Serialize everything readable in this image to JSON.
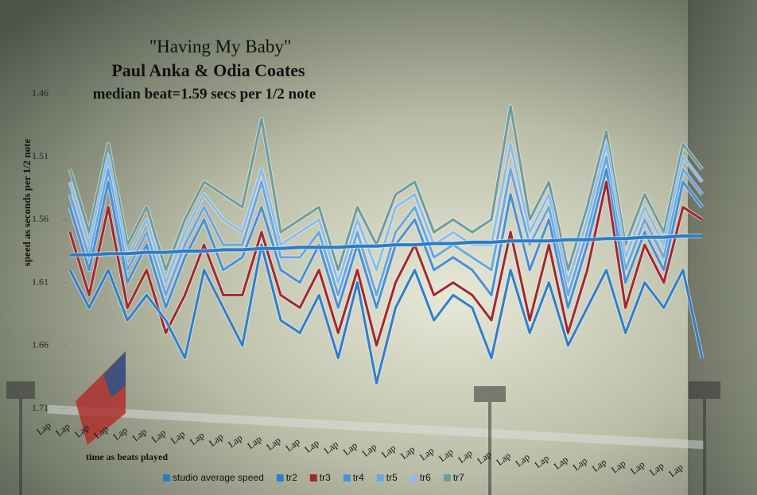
{
  "chart_data": {
    "type": "line",
    "title": "\"Having My Baby\"",
    "subtitle": "Paul Anka & Odia Coates",
    "annotation": "median beat=1.59 secs per 1/2 note",
    "y_label": "speed as seconds per 1/2 note",
    "x_label": "time as beats played",
    "ylim": [
      1.46,
      1.71
    ],
    "y_reversed": true,
    "yticks": [
      1.46,
      1.51,
      1.56,
      1.61,
      1.66,
      1.71
    ],
    "legend": "bottom",
    "categories": [
      "Lap",
      "Lap",
      "Lap",
      "Lap",
      "Lap",
      "Lap",
      "Lap",
      "Lap",
      "Lap",
      "Lap",
      "Lap",
      "Lap",
      "Lap",
      "Lap",
      "Lap",
      "Lap",
      "Lap",
      "Lap",
      "Lap",
      "Lap",
      "Lap",
      "Lap",
      "Lap",
      "Lap",
      "Lap",
      "Lap",
      "Lap",
      "Lap",
      "Lap",
      "Lap",
      "Lap",
      "Lap",
      "Lap",
      "Lap"
    ],
    "series": [
      {
        "name": "studio average speed",
        "color": "#2b7cc6",
        "values": [
          1.588,
          1.588,
          1.587,
          1.587,
          1.586,
          1.586,
          1.585,
          1.585,
          1.584,
          1.584,
          1.583,
          1.583,
          1.582,
          1.582,
          1.582,
          1.581,
          1.581,
          1.58,
          1.58,
          1.579,
          1.579,
          1.578,
          1.578,
          1.577,
          1.577,
          1.577,
          1.576,
          1.576,
          1.575,
          1.575,
          1.574,
          1.574,
          1.573,
          1.573
        ]
      },
      {
        "name": "tr2",
        "color": "#2f7ec9",
        "values": [
          1.6,
          1.63,
          1.6,
          1.64,
          1.62,
          1.64,
          1.67,
          1.6,
          1.63,
          1.66,
          1.58,
          1.64,
          1.65,
          1.62,
          1.67,
          1.61,
          1.69,
          1.63,
          1.6,
          1.64,
          1.62,
          1.63,
          1.67,
          1.6,
          1.65,
          1.61,
          1.66,
          1.63,
          1.6,
          1.65,
          1.61,
          1.63,
          1.6,
          1.67
        ]
      },
      {
        "name": "tr3",
        "color": "#a3262c",
        "values": [
          1.57,
          1.62,
          1.55,
          1.63,
          1.6,
          1.65,
          1.62,
          1.58,
          1.62,
          1.62,
          1.57,
          1.62,
          1.63,
          1.6,
          1.65,
          1.6,
          1.66,
          1.61,
          1.58,
          1.62,
          1.61,
          1.62,
          1.64,
          1.57,
          1.64,
          1.58,
          1.65,
          1.6,
          1.53,
          1.63,
          1.58,
          1.61,
          1.55,
          1.56
        ]
      },
      {
        "name": "tr4",
        "color": "#4a8fd6",
        "values": [
          1.55,
          1.6,
          1.53,
          1.61,
          1.58,
          1.63,
          1.59,
          1.56,
          1.6,
          1.59,
          1.55,
          1.6,
          1.61,
          1.58,
          1.63,
          1.58,
          1.63,
          1.58,
          1.56,
          1.6,
          1.59,
          1.6,
          1.62,
          1.54,
          1.6,
          1.56,
          1.63,
          1.58,
          1.52,
          1.61,
          1.57,
          1.6,
          1.53,
          1.55
        ]
      },
      {
        "name": "tr5",
        "color": "#6aa6e0",
        "values": [
          1.54,
          1.59,
          1.52,
          1.6,
          1.57,
          1.62,
          1.58,
          1.55,
          1.58,
          1.58,
          1.53,
          1.59,
          1.59,
          1.57,
          1.62,
          1.57,
          1.62,
          1.57,
          1.55,
          1.59,
          1.58,
          1.59,
          1.6,
          1.52,
          1.58,
          1.55,
          1.62,
          1.57,
          1.51,
          1.6,
          1.56,
          1.59,
          1.52,
          1.54
        ]
      },
      {
        "name": "tr6",
        "color": "#8cbde8",
        "values": [
          1.53,
          1.58,
          1.51,
          1.59,
          1.56,
          1.61,
          1.57,
          1.54,
          1.56,
          1.57,
          1.52,
          1.58,
          1.57,
          1.56,
          1.61,
          1.56,
          1.6,
          1.55,
          1.54,
          1.58,
          1.57,
          1.58,
          1.58,
          1.5,
          1.57,
          1.54,
          1.61,
          1.56,
          1.5,
          1.59,
          1.55,
          1.58,
          1.51,
          1.53
        ]
      },
      {
        "name": "tr7",
        "color": "#6f9c9a",
        "values": [
          1.52,
          1.57,
          1.5,
          1.58,
          1.55,
          1.6,
          1.56,
          1.53,
          1.54,
          1.55,
          1.48,
          1.57,
          1.56,
          1.55,
          1.6,
          1.55,
          1.58,
          1.54,
          1.53,
          1.57,
          1.56,
          1.57,
          1.56,
          1.47,
          1.56,
          1.53,
          1.6,
          1.55,
          1.49,
          1.58,
          1.54,
          1.57,
          1.5,
          1.52
        ]
      }
    ]
  }
}
